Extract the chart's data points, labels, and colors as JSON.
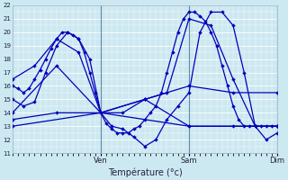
{
  "title": "Température (°c)",
  "ylim": [
    11,
    22
  ],
  "yticks": [
    11,
    12,
    13,
    14,
    15,
    16,
    17,
    18,
    19,
    20,
    21,
    22
  ],
  "bg_color": "#cce8f0",
  "grid_color": "#b8d8e8",
  "line_color": "#0000bb",
  "xtick_labels": [
    "Ven",
    "Sam",
    "Dim"
  ],
  "xtick_positions": [
    8,
    16,
    24
  ],
  "xlim": [
    0,
    24
  ],
  "series": [
    {
      "x": [
        0,
        0.5,
        1,
        1.5,
        2,
        2.5,
        3,
        3.5,
        4,
        4.5,
        5,
        5.5,
        6,
        6.5,
        7,
        7.5,
        8,
        8.5,
        9,
        9.5,
        10,
        10.5,
        11,
        11.5,
        12,
        12.5,
        13,
        13.5,
        14,
        14.5,
        15,
        15.5,
        16,
        16.5,
        17,
        17.5,
        18,
        18.5,
        19,
        19.5,
        20,
        20.5,
        21,
        21.5,
        22,
        22.5,
        23,
        23.5,
        24
      ],
      "y": [
        16.0,
        15.8,
        15.5,
        15.8,
        16.5,
        17.2,
        18.0,
        18.8,
        19.5,
        20.0,
        20.0,
        19.8,
        19.5,
        18.5,
        17.0,
        15.5,
        14.0,
        13.2,
        12.8,
        12.5,
        12.5,
        12.5,
        12.8,
        13.0,
        13.5,
        14.0,
        14.5,
        15.5,
        17.0,
        18.5,
        20.0,
        21.0,
        21.5,
        21.5,
        21.2,
        20.8,
        20.0,
        19.0,
        17.5,
        16.0,
        14.5,
        13.5,
        13.0,
        13.0,
        13.0,
        13.0,
        13.0,
        13.0,
        13.0
      ]
    },
    {
      "x": [
        0,
        1,
        2,
        3,
        4,
        5,
        6,
        7,
        8,
        9,
        10,
        11,
        12,
        13,
        14,
        15,
        16,
        17,
        18,
        19,
        20,
        21,
        22,
        23,
        24
      ],
      "y": [
        15.0,
        14.5,
        14.8,
        17.0,
        19.0,
        20.0,
        19.5,
        18.0,
        14.0,
        13.0,
        12.8,
        12.2,
        11.5,
        12.0,
        13.5,
        14.5,
        15.5,
        20.0,
        21.5,
        21.5,
        20.5,
        17.0,
        13.0,
        12.0,
        12.5
      ]
    },
    {
      "x": [
        0,
        2,
        4,
        6,
        8,
        10,
        12,
        14,
        16,
        18,
        20,
        22,
        24
      ],
      "y": [
        16.5,
        17.5,
        19.5,
        18.5,
        14.0,
        14.0,
        15.0,
        15.5,
        21.0,
        20.5,
        16.5,
        13.0,
        13.0
      ]
    },
    {
      "x": [
        0,
        4,
        8,
        12,
        16,
        20,
        24
      ],
      "y": [
        14.0,
        17.5,
        14.0,
        15.0,
        16.0,
        15.5,
        15.5
      ]
    },
    {
      "x": [
        0,
        4,
        8,
        12,
        16,
        20,
        24
      ],
      "y": [
        13.5,
        14.0,
        14.0,
        15.0,
        13.0,
        13.0,
        13.0
      ]
    },
    {
      "x": [
        0,
        8,
        16,
        24
      ],
      "y": [
        13.0,
        14.0,
        13.0,
        13.0
      ]
    }
  ]
}
